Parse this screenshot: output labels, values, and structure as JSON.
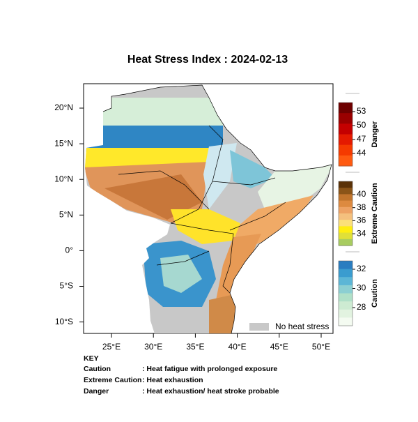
{
  "title": "Heat Stress Index : 2024-02-13",
  "map": {
    "lon_labels": [
      "25°E",
      "30°E",
      "35°E",
      "40°E",
      "45°E",
      "50°E"
    ],
    "lat_labels": [
      "20°N",
      "15°N",
      "10°N",
      "5°N",
      "0°",
      "5°S",
      "10°S"
    ],
    "no_data_label": "No heat stress"
  },
  "legend": {
    "groups": [
      {
        "name": "Danger",
        "labels": [
          53,
          50,
          47,
          44
        ],
        "colors": [
          "#6e0000",
          "#9a0000",
          "#c40000",
          "#e41a00",
          "#f53a00",
          "#ff5a10"
        ]
      },
      {
        "name": "Extreme Caution",
        "labels": [
          40,
          38,
          36,
          34
        ],
        "colors": [
          "#5a3208",
          "#8a5418",
          "#c0742c",
          "#dd8a40",
          "#eda264",
          "#f4c07e",
          "#fbe07a",
          "#ffee10",
          "#e0e038",
          "#a8cc60"
        ]
      },
      {
        "name": "Caution",
        "labels": [
          32,
          30,
          28
        ],
        "colors": [
          "#2a7dc0",
          "#3a9ccf",
          "#5cb6d6",
          "#8ccfd2",
          "#b0e0c8",
          "#cdebd2",
          "#e2f3e0",
          "#f4fbf1"
        ]
      }
    ]
  },
  "key": {
    "heading": "KEY",
    "rows": [
      {
        "term": "Caution",
        "desc": ": Heat fatigue with prolonged exposure"
      },
      {
        "term": "Extreme Caution",
        "desc": " : Heat exhaustion"
      },
      {
        "term": "Danger",
        "desc": ": Heat exhaustion/ heat stroke probable"
      }
    ]
  }
}
